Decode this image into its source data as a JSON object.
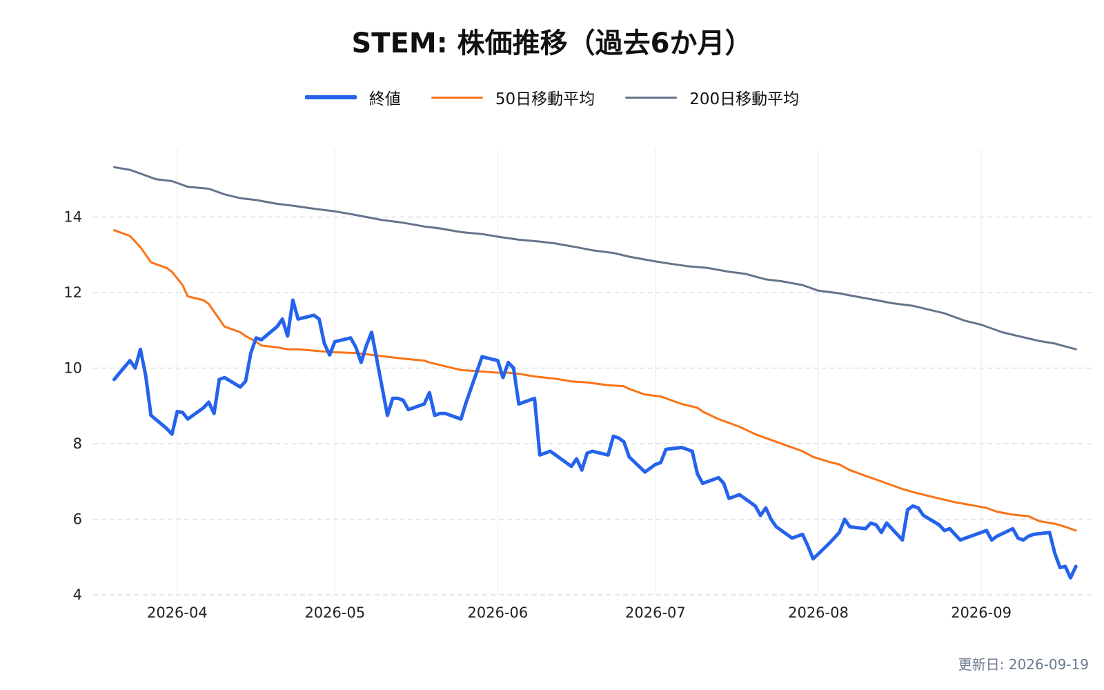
{
  "chart_data": {
    "type": "line",
    "title": "STEM: 株価推移（過去6か月）",
    "xlabel": "",
    "ylabel": "",
    "x_range": [
      "2026-03-20",
      "2026-09-19"
    ],
    "ylim": [
      4,
      15.8
    ],
    "y_ticks": [
      4,
      6,
      8,
      10,
      12,
      14
    ],
    "x_ticks": [
      "2026-04",
      "2026-05",
      "2026-06",
      "2026-07",
      "2026-08",
      "2026-09"
    ],
    "x_tick_dates": [
      "2026-04-01",
      "2026-05-01",
      "2026-06-01",
      "2026-07-01",
      "2026-08-01",
      "2026-09-01"
    ],
    "grid": true,
    "legend_position": "top-center",
    "series": [
      {
        "name": "終値",
        "color": "#2563eb",
        "points": [
          [
            "2026-03-20",
            9.7
          ],
          [
            "2026-03-23",
            10.2
          ],
          [
            "2026-03-24",
            10.0
          ],
          [
            "2026-03-25",
            10.5
          ],
          [
            "2026-03-26",
            9.8
          ],
          [
            "2026-03-27",
            8.75
          ],
          [
            "2026-03-30",
            8.4
          ],
          [
            "2026-03-31",
            8.25
          ],
          [
            "2026-04-01",
            8.85
          ],
          [
            "2026-04-02",
            8.83
          ],
          [
            "2026-04-03",
            8.65
          ],
          [
            "2026-04-06",
            8.95
          ],
          [
            "2026-04-07",
            9.1
          ],
          [
            "2026-04-08",
            8.8
          ],
          [
            "2026-04-09",
            9.7
          ],
          [
            "2026-04-10",
            9.75
          ],
          [
            "2026-04-13",
            9.5
          ],
          [
            "2026-04-14",
            9.65
          ],
          [
            "2026-04-15",
            10.4
          ],
          [
            "2026-04-16",
            10.8
          ],
          [
            "2026-04-17",
            10.75
          ],
          [
            "2026-04-20",
            11.1
          ],
          [
            "2026-04-21",
            11.3
          ],
          [
            "2026-04-22",
            10.85
          ],
          [
            "2026-04-23",
            11.8
          ],
          [
            "2026-04-24",
            11.3
          ],
          [
            "2026-04-27",
            11.4
          ],
          [
            "2026-04-28",
            11.3
          ],
          [
            "2026-04-29",
            10.65
          ],
          [
            "2026-04-30",
            10.35
          ],
          [
            "2026-05-01",
            10.7
          ],
          [
            "2026-05-04",
            10.8
          ],
          [
            "2026-05-05",
            10.55
          ],
          [
            "2026-05-06",
            10.15
          ],
          [
            "2026-05-07",
            10.6
          ],
          [
            "2026-05-08",
            10.95
          ],
          [
            "2026-05-11",
            8.75
          ],
          [
            "2026-05-12",
            9.2
          ],
          [
            "2026-05-13",
            9.2
          ],
          [
            "2026-05-14",
            9.15
          ],
          [
            "2026-05-15",
            8.9
          ],
          [
            "2026-05-18",
            9.05
          ],
          [
            "2026-05-19",
            9.35
          ],
          [
            "2026-05-20",
            8.75
          ],
          [
            "2026-05-21",
            8.8
          ],
          [
            "2026-05-22",
            8.8
          ],
          [
            "2026-05-25",
            8.65
          ],
          [
            "2026-05-26",
            9.1
          ],
          [
            "2026-05-27",
            9.5
          ],
          [
            "2026-05-28",
            9.9
          ],
          [
            "2026-05-29",
            10.3
          ],
          [
            "2026-06-01",
            10.2
          ],
          [
            "2026-06-02",
            9.75
          ],
          [
            "2026-06-03",
            10.15
          ],
          [
            "2026-06-04",
            10.0
          ],
          [
            "2026-06-05",
            9.05
          ],
          [
            "2026-06-08",
            9.2
          ],
          [
            "2026-06-09",
            7.7
          ],
          [
            "2026-06-10",
            7.75
          ],
          [
            "2026-06-11",
            7.8
          ],
          [
            "2026-06-12",
            7.7
          ],
          [
            "2026-06-15",
            7.4
          ],
          [
            "2026-06-16",
            7.6
          ],
          [
            "2026-06-17",
            7.3
          ],
          [
            "2026-06-18",
            7.75
          ],
          [
            "2026-06-19",
            7.8
          ],
          [
            "2026-06-22",
            7.7
          ],
          [
            "2026-06-23",
            8.2
          ],
          [
            "2026-06-24",
            8.15
          ],
          [
            "2026-06-25",
            8.05
          ],
          [
            "2026-06-26",
            7.65
          ],
          [
            "2026-06-29",
            7.25
          ],
          [
            "2026-06-30",
            7.35
          ],
          [
            "2026-07-01",
            7.45
          ],
          [
            "2026-07-02",
            7.5
          ],
          [
            "2026-07-03",
            7.85
          ],
          [
            "2026-07-06",
            7.9
          ],
          [
            "2026-07-07",
            7.85
          ],
          [
            "2026-07-08",
            7.8
          ],
          [
            "2026-07-09",
            7.2
          ],
          [
            "2026-07-10",
            6.95
          ],
          [
            "2026-07-13",
            7.1
          ],
          [
            "2026-07-14",
            6.95
          ],
          [
            "2026-07-15",
            6.55
          ],
          [
            "2026-07-16",
            6.6
          ],
          [
            "2026-07-17",
            6.65
          ],
          [
            "2026-07-20",
            6.35
          ],
          [
            "2026-07-21",
            6.1
          ],
          [
            "2026-07-22",
            6.3
          ],
          [
            "2026-07-23",
            6.0
          ],
          [
            "2026-07-24",
            5.8
          ],
          [
            "2026-07-27",
            5.5
          ],
          [
            "2026-07-28",
            5.55
          ],
          [
            "2026-07-29",
            5.6
          ],
          [
            "2026-07-30",
            5.3
          ],
          [
            "2026-07-31",
            4.95
          ],
          [
            "2026-08-03",
            5.35
          ],
          [
            "2026-08-04",
            5.5
          ],
          [
            "2026-08-05",
            5.65
          ],
          [
            "2026-08-06",
            6.0
          ],
          [
            "2026-08-07",
            5.8
          ],
          [
            "2026-08-10",
            5.75
          ],
          [
            "2026-08-11",
            5.9
          ],
          [
            "2026-08-12",
            5.85
          ],
          [
            "2026-08-13",
            5.65
          ],
          [
            "2026-08-14",
            5.9
          ],
          [
            "2026-08-17",
            5.45
          ],
          [
            "2026-08-18",
            6.25
          ],
          [
            "2026-08-19",
            6.35
          ],
          [
            "2026-08-20",
            6.3
          ],
          [
            "2026-08-21",
            6.1
          ],
          [
            "2026-08-24",
            5.85
          ],
          [
            "2026-08-25",
            5.7
          ],
          [
            "2026-08-26",
            5.75
          ],
          [
            "2026-08-27",
            5.6
          ],
          [
            "2026-08-28",
            5.45
          ],
          [
            "2026-08-31",
            5.6
          ],
          [
            "2026-09-01",
            5.65
          ],
          [
            "2026-09-02",
            5.7
          ],
          [
            "2026-09-03",
            5.45
          ],
          [
            "2026-09-04",
            5.55
          ],
          [
            "2026-09-07",
            5.75
          ],
          [
            "2026-09-08",
            5.5
          ],
          [
            "2026-09-09",
            5.45
          ],
          [
            "2026-09-10",
            5.55
          ],
          [
            "2026-09-11",
            5.6
          ],
          [
            "2026-09-14",
            5.65
          ],
          [
            "2026-09-15",
            5.1
          ],
          [
            "2026-09-16",
            4.72
          ],
          [
            "2026-09-17",
            4.75
          ],
          [
            "2026-09-18",
            4.45
          ],
          [
            "2026-09-19",
            4.75
          ]
        ]
      },
      {
        "name": "50日移動平均",
        "color": "#f97316",
        "points": [
          [
            "2026-03-20",
            13.65
          ],
          [
            "2026-03-23",
            13.5
          ],
          [
            "2026-03-25",
            13.2
          ],
          [
            "2026-03-27",
            12.8
          ],
          [
            "2026-03-30",
            12.65
          ],
          [
            "2026-03-31",
            12.55
          ],
          [
            "2026-04-02",
            12.2
          ],
          [
            "2026-04-03",
            11.9
          ],
          [
            "2026-04-06",
            11.8
          ],
          [
            "2026-04-07",
            11.7
          ],
          [
            "2026-04-09",
            11.3
          ],
          [
            "2026-04-10",
            11.1
          ],
          [
            "2026-04-13",
            10.95
          ],
          [
            "2026-04-14",
            10.85
          ],
          [
            "2026-04-16",
            10.7
          ],
          [
            "2026-04-17",
            10.6
          ],
          [
            "2026-04-20",
            10.55
          ],
          [
            "2026-04-22",
            10.5
          ],
          [
            "2026-04-24",
            10.5
          ],
          [
            "2026-04-28",
            10.45
          ],
          [
            "2026-05-01",
            10.42
          ],
          [
            "2026-05-05",
            10.4
          ],
          [
            "2026-05-08",
            10.35
          ],
          [
            "2026-05-11",
            10.3
          ],
          [
            "2026-05-14",
            10.25
          ],
          [
            "2026-05-18",
            10.2
          ],
          [
            "2026-05-19",
            10.15
          ],
          [
            "2026-05-22",
            10.05
          ],
          [
            "2026-05-25",
            9.95
          ],
          [
            "2026-05-28",
            9.92
          ],
          [
            "2026-06-01",
            9.88
          ],
          [
            "2026-06-03",
            9.88
          ],
          [
            "2026-06-05",
            9.85
          ],
          [
            "2026-06-08",
            9.78
          ],
          [
            "2026-06-12",
            9.72
          ],
          [
            "2026-06-15",
            9.65
          ],
          [
            "2026-06-18",
            9.62
          ],
          [
            "2026-06-22",
            9.55
          ],
          [
            "2026-06-25",
            9.52
          ],
          [
            "2026-06-26",
            9.45
          ],
          [
            "2026-06-29",
            9.3
          ],
          [
            "2026-07-02",
            9.25
          ],
          [
            "2026-07-06",
            9.05
          ],
          [
            "2026-07-09",
            8.95
          ],
          [
            "2026-07-10",
            8.85
          ],
          [
            "2026-07-13",
            8.65
          ],
          [
            "2026-07-15",
            8.55
          ],
          [
            "2026-07-17",
            8.45
          ],
          [
            "2026-07-20",
            8.25
          ],
          [
            "2026-07-22",
            8.15
          ],
          [
            "2026-07-24",
            8.05
          ],
          [
            "2026-07-27",
            7.9
          ],
          [
            "2026-07-29",
            7.8
          ],
          [
            "2026-07-31",
            7.65
          ],
          [
            "2026-08-03",
            7.52
          ],
          [
            "2026-08-05",
            7.45
          ],
          [
            "2026-08-07",
            7.3
          ],
          [
            "2026-08-10",
            7.15
          ],
          [
            "2026-08-12",
            7.05
          ],
          [
            "2026-08-14",
            6.95
          ],
          [
            "2026-08-17",
            6.8
          ],
          [
            "2026-08-19",
            6.72
          ],
          [
            "2026-08-21",
            6.65
          ],
          [
            "2026-08-24",
            6.55
          ],
          [
            "2026-08-27",
            6.45
          ],
          [
            "2026-08-31",
            6.35
          ],
          [
            "2026-09-02",
            6.3
          ],
          [
            "2026-09-04",
            6.2
          ],
          [
            "2026-09-07",
            6.12
          ],
          [
            "2026-09-10",
            6.08
          ],
          [
            "2026-09-12",
            5.95
          ],
          [
            "2026-09-15",
            5.88
          ],
          [
            "2026-09-17",
            5.8
          ],
          [
            "2026-09-19",
            5.7
          ]
        ]
      },
      {
        "name": "200日移動平均",
        "color": "#64748b",
        "points": [
          [
            "2026-03-20",
            15.32
          ],
          [
            "2026-03-23",
            15.25
          ],
          [
            "2026-03-26",
            15.1
          ],
          [
            "2026-03-28",
            15.0
          ],
          [
            "2026-03-31",
            14.95
          ],
          [
            "2026-04-03",
            14.8
          ],
          [
            "2026-04-07",
            14.75
          ],
          [
            "2026-04-10",
            14.6
          ],
          [
            "2026-04-13",
            14.5
          ],
          [
            "2026-04-16",
            14.45
          ],
          [
            "2026-04-20",
            14.35
          ],
          [
            "2026-04-23",
            14.3
          ],
          [
            "2026-04-27",
            14.22
          ],
          [
            "2026-05-01",
            14.15
          ],
          [
            "2026-05-04",
            14.08
          ],
          [
            "2026-05-07",
            14.0
          ],
          [
            "2026-05-10",
            13.92
          ],
          [
            "2026-05-14",
            13.85
          ],
          [
            "2026-05-18",
            13.75
          ],
          [
            "2026-05-21",
            13.7
          ],
          [
            "2026-05-25",
            13.6
          ],
          [
            "2026-05-29",
            13.55
          ],
          [
            "2026-06-01",
            13.48
          ],
          [
            "2026-06-05",
            13.4
          ],
          [
            "2026-06-09",
            13.35
          ],
          [
            "2026-06-12",
            13.3
          ],
          [
            "2026-06-16",
            13.2
          ],
          [
            "2026-06-19",
            13.12
          ],
          [
            "2026-06-23",
            13.05
          ],
          [
            "2026-06-26",
            12.95
          ],
          [
            "2026-06-30",
            12.85
          ],
          [
            "2026-07-03",
            12.78
          ],
          [
            "2026-07-07",
            12.7
          ],
          [
            "2026-07-11",
            12.65
          ],
          [
            "2026-07-15",
            12.55
          ],
          [
            "2026-07-18",
            12.5
          ],
          [
            "2026-07-22",
            12.35
          ],
          [
            "2026-07-25",
            12.3
          ],
          [
            "2026-07-29",
            12.2
          ],
          [
            "2026-08-01",
            12.05
          ],
          [
            "2026-08-05",
            11.98
          ],
          [
            "2026-08-08",
            11.9
          ],
          [
            "2026-08-12",
            11.8
          ],
          [
            "2026-08-15",
            11.72
          ],
          [
            "2026-08-19",
            11.65
          ],
          [
            "2026-08-22",
            11.55
          ],
          [
            "2026-08-25",
            11.45
          ],
          [
            "2026-08-29",
            11.25
          ],
          [
            "2026-09-01",
            11.15
          ],
          [
            "2026-09-05",
            10.95
          ],
          [
            "2026-09-08",
            10.85
          ],
          [
            "2026-09-12",
            10.72
          ],
          [
            "2026-09-15",
            10.65
          ],
          [
            "2026-09-19",
            10.5
          ]
        ]
      }
    ]
  },
  "footer": {
    "updated": "更新日: 2026-09-19"
  }
}
